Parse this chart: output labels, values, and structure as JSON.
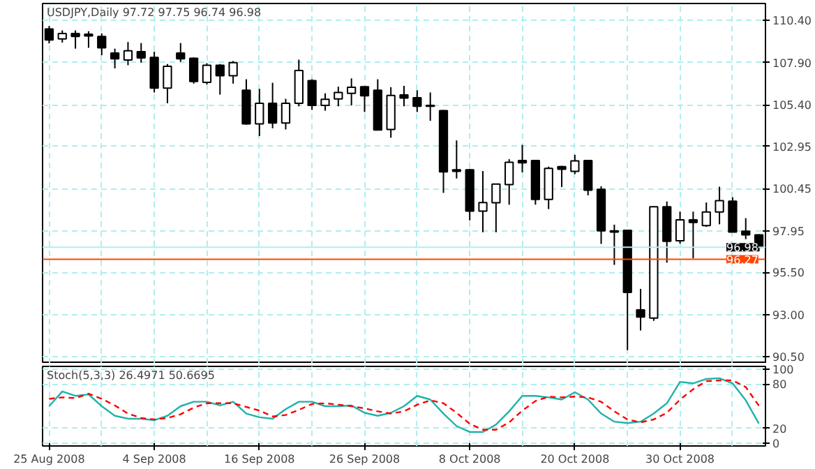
{
  "chart_data": [
    {
      "type": "candlestick",
      "title": "USDJPY,Daily  97.72 97.75 96.74 96.98",
      "categories": [
        null,
        null,
        null,
        null,
        null,
        null,
        null,
        null,
        null,
        null,
        null,
        null,
        null,
        null,
        null,
        null,
        null,
        null,
        null,
        null,
        null,
        null,
        null,
        null,
        null,
        null,
        null,
        null,
        null,
        null,
        null,
        null,
        null,
        null,
        null,
        null,
        null,
        null,
        null,
        null,
        null,
        null,
        null,
        null,
        null,
        null,
        null,
        null,
        null,
        null,
        null,
        null,
        null,
        null,
        null
      ],
      "ohlc": [
        [
          109.89,
          110.07,
          109.04,
          109.24
        ],
        [
          109.3,
          109.81,
          109.09,
          109.63
        ],
        [
          109.63,
          109.81,
          108.73,
          109.45
        ],
        [
          109.58,
          109.76,
          108.78,
          109.48
        ],
        [
          109.45,
          109.63,
          108.34,
          108.78
        ],
        [
          108.47,
          108.73,
          107.56,
          108.13
        ],
        [
          108.06,
          109.12,
          107.75,
          108.6
        ],
        [
          108.55,
          109.06,
          107.9,
          108.18
        ],
        [
          108.21,
          108.55,
          106.14,
          106.4
        ],
        [
          106.4,
          107.82,
          105.5,
          107.69
        ],
        [
          108.47,
          109.06,
          107.95,
          108.13
        ],
        [
          108.16,
          108.21,
          106.66,
          106.79
        ],
        [
          106.74,
          107.87,
          106.61,
          107.75
        ],
        [
          107.75,
          107.82,
          106.01,
          107.13
        ],
        [
          107.13,
          108.0,
          106.66,
          107.9
        ],
        [
          106.27,
          106.92,
          104.23,
          104.28
        ],
        [
          104.28,
          106.35,
          103.56,
          105.5
        ],
        [
          105.5,
          106.71,
          104.02,
          104.33
        ],
        [
          104.33,
          105.76,
          103.95,
          105.5
        ],
        [
          105.5,
          108.08,
          105.32,
          107.44
        ],
        [
          106.84,
          106.92,
          105.11,
          105.37
        ],
        [
          105.37,
          106.09,
          105.06,
          105.73
        ],
        [
          105.76,
          106.48,
          105.32,
          106.14
        ],
        [
          106.09,
          106.97,
          105.37,
          106.45
        ],
        [
          106.48,
          106.5,
          104.98,
          105.94
        ],
        [
          106.27,
          106.92,
          103.9,
          103.92
        ],
        [
          103.95,
          106.45,
          103.46,
          105.96
        ],
        [
          105.99,
          106.53,
          105.32,
          105.81
        ],
        [
          105.83,
          106.27,
          104.98,
          105.32
        ],
        [
          105.37,
          106.14,
          104.46,
          105.32
        ],
        [
          105.06,
          105.1,
          100.2,
          101.44
        ],
        [
          101.57,
          103.3,
          101.05,
          101.47
        ],
        [
          101.57,
          101.62,
          98.57,
          99.12
        ],
        [
          99.12,
          101.49,
          97.87,
          99.63
        ],
        [
          99.61,
          100.75,
          97.87,
          100.72
        ],
        [
          100.69,
          102.19,
          99.5,
          102.01
        ],
        [
          102.11,
          103.04,
          101.41,
          101.98
        ],
        [
          102.11,
          102.15,
          99.5,
          99.81
        ],
        [
          99.81,
          101.75,
          99.24,
          101.65
        ],
        [
          101.75,
          101.8,
          100.54,
          101.6
        ],
        [
          101.47,
          102.45,
          101.31,
          102.09
        ],
        [
          102.11,
          102.15,
          100.05,
          100.36
        ],
        [
          100.41,
          100.59,
          97.18,
          97.95
        ],
        [
          97.95,
          98.32,
          95.94,
          97.88
        ],
        [
          97.98,
          98.02,
          90.9,
          94.31
        ],
        [
          93.28,
          94.52,
          92.06,
          92.86
        ],
        [
          92.79,
          99.4,
          92.63,
          99.38
        ],
        [
          99.38,
          99.69,
          96.07,
          97.33
        ],
        [
          97.36,
          99.09,
          97.2,
          98.6
        ],
        [
          98.6,
          99.09,
          96.33,
          98.45
        ],
        [
          98.26,
          99.63,
          98.19,
          99.07
        ],
        [
          99.07,
          100.56,
          98.34,
          99.74
        ],
        [
          99.71,
          99.94,
          97.88,
          97.88
        ],
        [
          97.93,
          98.7,
          97.46,
          97.72
        ],
        [
          97.72,
          97.75,
          96.74,
          96.98
        ]
      ],
      "ylim": [
        90.1,
        111.4
      ],
      "yticks": [
        {
          "value": 110.4,
          "label": "110.40"
        },
        {
          "value": 107.9,
          "label": "107.90"
        },
        {
          "value": 105.4,
          "label": "105.40"
        },
        {
          "value": 102.95,
          "label": "102.95"
        },
        {
          "value": 100.45,
          "label": "100.45"
        },
        {
          "value": 97.95,
          "label": "97.95"
        },
        {
          "value": 95.5,
          "label": "95.50"
        },
        {
          "value": 93.0,
          "label": "93.00"
        },
        {
          "value": 90.5,
          "label": "90.50"
        }
      ],
      "ref_lines": [
        {
          "axis": "y",
          "value": 96.98,
          "label": "96.98",
          "color": "#afeeee"
        },
        {
          "axis": "y",
          "value": 96.27,
          "label": "96.27",
          "color": "#ff4500"
        }
      ],
      "grid": true,
      "tick_labels": "y"
    },
    {
      "type": "line",
      "title": "Stoch(5,3,3) 26.4971 50.6695",
      "categories": [
        "25 Aug 2008",
        null,
        null,
        null,
        null,
        null,
        null,
        null,
        "4 Sep 2008",
        null,
        null,
        null,
        null,
        null,
        null,
        null,
        "16 Sep 2008",
        null,
        null,
        null,
        null,
        null,
        null,
        null,
        "26 Sep 2008",
        null,
        null,
        null,
        null,
        null,
        null,
        null,
        "8 Oct 2008",
        null,
        null,
        null,
        null,
        null,
        null,
        null,
        "20 Oct 2008",
        null,
        null,
        null,
        null,
        null,
        null,
        null,
        "30 Oct 2008",
        null,
        null,
        null,
        null,
        null,
        null
      ],
      "series": [
        {
          "color": "#20b2aa",
          "line_style": "solid",
          "values": [
            50,
            70,
            64,
            66,
            50,
            37,
            33,
            33,
            31,
            37,
            50,
            56,
            56,
            51,
            56,
            40,
            35,
            33,
            46,
            56,
            56,
            50,
            50,
            51,
            41,
            37,
            41,
            50,
            64,
            59,
            40,
            23,
            15,
            15,
            25,
            43,
            64,
            64,
            62,
            59,
            69,
            59,
            40,
            29,
            27,
            29,
            40,
            54,
            83,
            81,
            87,
            88,
            81,
            58,
            26.4971
          ]
        },
        {
          "color": "#ff0000",
          "line_style": "dashed",
          "values": [
            60,
            62,
            61,
            67,
            60,
            51,
            40,
            34,
            32,
            34,
            39,
            48,
            54,
            54,
            54,
            49,
            44,
            36,
            38,
            45,
            53,
            54,
            52,
            50,
            47,
            43,
            40,
            43,
            52,
            58,
            54,
            41,
            26,
            18,
            18,
            28,
            44,
            57,
            63,
            62,
            63,
            62,
            56,
            43,
            32,
            28,
            32,
            41,
            59,
            73,
            84,
            85,
            85,
            76,
            50.6695
          ]
        }
      ],
      "ylim": [
        -4,
        104
      ],
      "yticks": [
        0,
        20,
        80,
        100
      ],
      "grid": true
    }
  ]
}
